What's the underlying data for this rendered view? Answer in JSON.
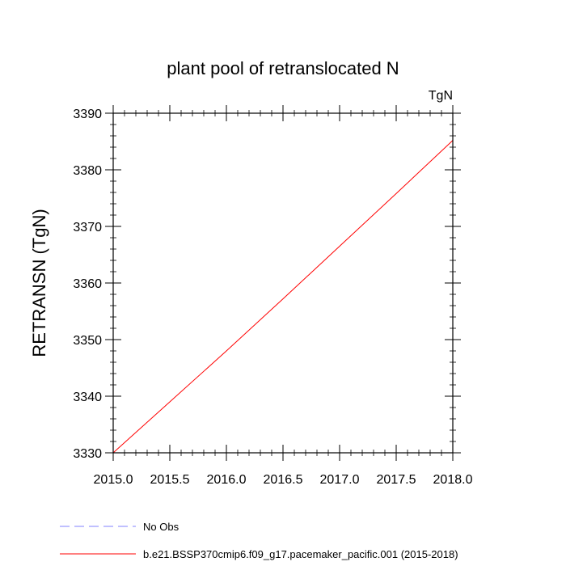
{
  "chart_data": {
    "type": "line",
    "title": "plant pool of retranslocated N",
    "units_label": "TgN",
    "ylabel": "RETRANSN  (TgN)",
    "xlabel": "",
    "xlim": [
      2015.0,
      2018.0
    ],
    "ylim": [
      3330,
      3390
    ],
    "x_ticks": [
      2015.0,
      2015.5,
      2016.0,
      2016.5,
      2017.0,
      2017.5,
      2018.0
    ],
    "x_tick_labels": [
      "2015.0",
      "2015.5",
      "2016.0",
      "2016.5",
      "2017.0",
      "2017.5",
      "2018.0"
    ],
    "y_ticks": [
      3330,
      3340,
      3350,
      3360,
      3370,
      3380,
      3390
    ],
    "y_tick_labels": [
      "3330",
      "3340",
      "3350",
      "3360",
      "3370",
      "3380",
      "3390"
    ],
    "grid": false,
    "legend_position": "bottom-left",
    "series": [
      {
        "name": "No Obs",
        "color": "#8080ff",
        "dashed": true,
        "x": [],
        "y": []
      },
      {
        "name": "b.e21.BSSP370cmip6.f09_g17.pacemaker_pacific.001 (2015-2018)",
        "color": "#ff0000",
        "dashed": false,
        "x": [
          2015.0,
          2015.5,
          2016.0,
          2016.5,
          2017.0,
          2017.5,
          2018.0
        ],
        "y": [
          3330.0,
          3339.0,
          3348.0,
          3357.2,
          3366.5,
          3375.8,
          3385.2
        ]
      }
    ]
  }
}
